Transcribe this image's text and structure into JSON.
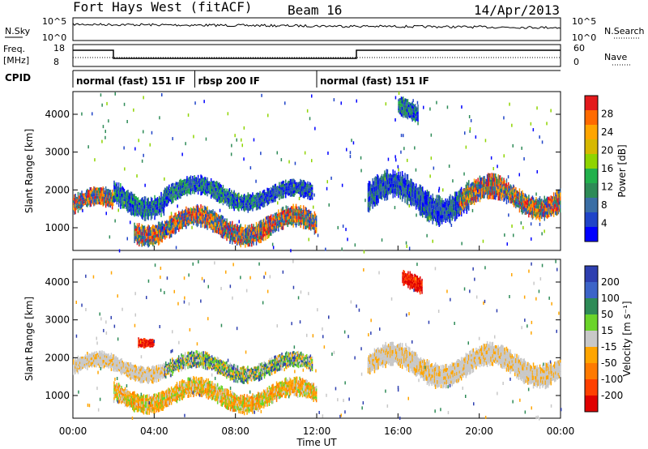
{
  "header": {
    "title": "Fort Hays West (fitACF)",
    "beam": "Beam 16",
    "date": "14/Apr/2013"
  },
  "noise_panel": {
    "left_label": "N.Sky",
    "right_label": "N.Search",
    "left_ticks": [
      "10^5",
      "10^0"
    ],
    "right_ticks": [
      "10^5",
      "10^0"
    ]
  },
  "freq_panel": {
    "left_label_line1": "Freq.",
    "left_label_line2": "[MHz]",
    "right_label": "Nave",
    "left_ticks": [
      "18",
      "8"
    ],
    "right_ticks": [
      "60",
      "0"
    ]
  },
  "cpid_panel": {
    "label": "CPID",
    "segments": [
      {
        "label": "normal (fast) 151 IF",
        "start": 0.0,
        "end": 6.0
      },
      {
        "label": "rbsp 200 IF",
        "start": 6.0,
        "end": 12.0
      },
      {
        "label": "normal (fast) 151 IF",
        "start": 12.0,
        "end": 24.0
      }
    ]
  },
  "chart_data": [
    {
      "type": "heatmap",
      "title": "",
      "ylabel": "Slant Range [km]",
      "xlabel": "",
      "xlim": [
        0,
        24
      ],
      "ylim": [
        400,
        4600
      ],
      "y_ticks": [
        "1000",
        "2000",
        "3000",
        "4000"
      ],
      "colorbar": {
        "label": "Power [dB]",
        "ticks": [
          "28",
          "24",
          "20",
          "16",
          "12",
          "8",
          "4"
        ],
        "colors": [
          "#e31a1c",
          "#ff6a00",
          "#ffa500",
          "#d6b800",
          "#8fd400",
          "#22b14c",
          "#2e8b57",
          "#3a6ea5",
          "#2044c8",
          "#0000ff"
        ]
      },
      "bands": [
        {
          "t0": 0.0,
          "t1": 2.0,
          "y0": 1200,
          "y1": 2000,
          "level": "strong"
        },
        {
          "t0": 2.0,
          "t1": 4.5,
          "y0": 1300,
          "y1": 2300,
          "level": "medium"
        },
        {
          "t0": 3.0,
          "t1": 12.0,
          "y0": 600,
          "y1": 1500,
          "level": "strong"
        },
        {
          "t0": 4.5,
          "t1": 9.0,
          "y0": 1500,
          "y1": 2300,
          "level": "medium"
        },
        {
          "t0": 9.0,
          "t1": 11.8,
          "y0": 1500,
          "y1": 2200,
          "level": "weak"
        },
        {
          "t0": 14.5,
          "t1": 19.5,
          "y0": 1200,
          "y1": 2400,
          "level": "weak"
        },
        {
          "t0": 19.0,
          "t1": 24.0,
          "y0": 1300,
          "y1": 2300,
          "level": "strong"
        },
        {
          "t0": 16.0,
          "t1": 17.0,
          "y0": 3600,
          "y1": 4400,
          "level": "medium"
        }
      ]
    },
    {
      "type": "heatmap",
      "title": "",
      "ylabel": "Slant Range [km]",
      "xlabel": "Time UT",
      "xlim": [
        0,
        24
      ],
      "ylim": [
        400,
        4600
      ],
      "x_ticks": [
        "00:00",
        "04:00",
        "08:00",
        "12:00",
        "16:00",
        "20:00",
        "00:00"
      ],
      "y_ticks": [
        "1000",
        "2000",
        "3000",
        "4000"
      ],
      "colorbar": {
        "label": "Velocity [m s⁻¹]",
        "ticks": [
          "200",
          "100",
          "50",
          "15",
          "-15",
          "-50",
          "-100",
          "-200"
        ],
        "colors": [
          "#2e3fb0",
          "#3c64c8",
          "#2e8b57",
          "#6bd42a",
          "#c8c8c8",
          "#ffa500",
          "#ff7a00",
          "#ff4000",
          "#e00000"
        ]
      },
      "bands": [
        {
          "t0": 0.0,
          "t1": 4.5,
          "y0": 1400,
          "y1": 2100,
          "level": "gray"
        },
        {
          "t0": 2.0,
          "t1": 12.0,
          "y0": 600,
          "y1": 1400,
          "level": "orange"
        },
        {
          "t0": 4.5,
          "t1": 11.8,
          "y0": 1400,
          "y1": 2100,
          "level": "mixed"
        },
        {
          "t0": 14.5,
          "t1": 24.0,
          "y0": 1300,
          "y1": 2300,
          "level": "gray"
        },
        {
          "t0": 3.2,
          "t1": 4.0,
          "y0": 2300,
          "y1": 2700,
          "level": "red"
        },
        {
          "t0": 16.2,
          "t1": 17.2,
          "y0": 3600,
          "y1": 4300,
          "level": "red"
        }
      ]
    }
  ]
}
